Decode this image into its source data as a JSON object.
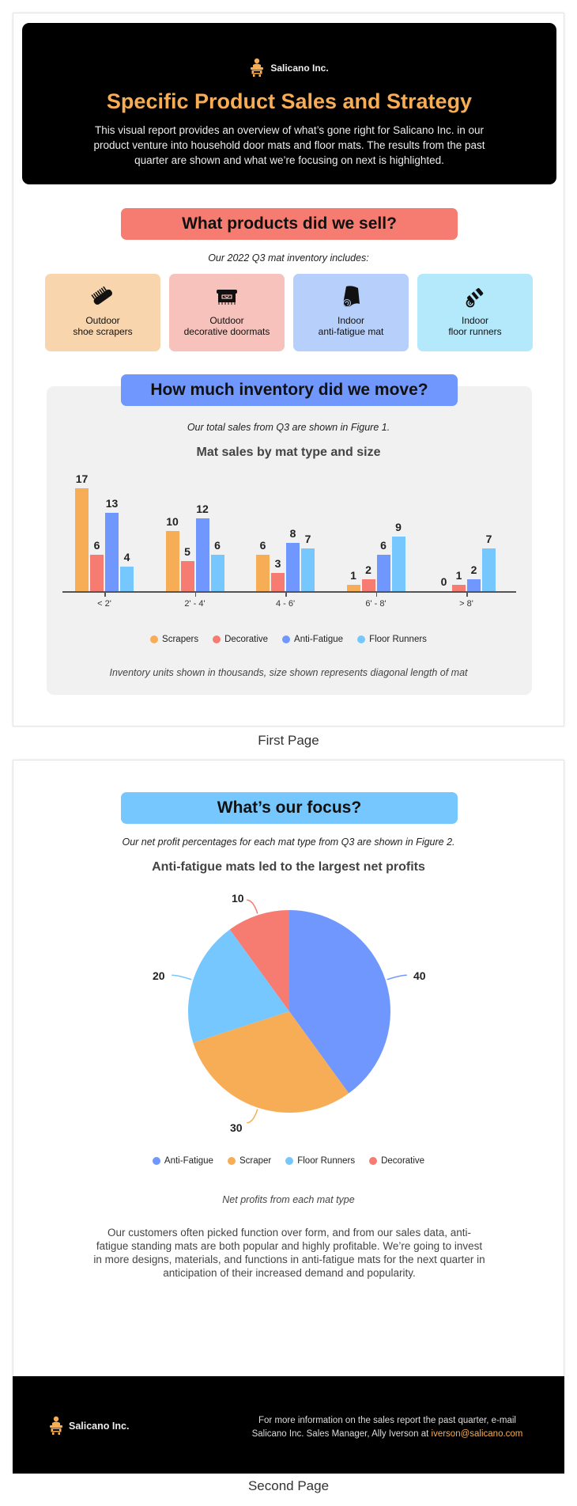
{
  "header": {
    "company": "Salicano Inc.",
    "title": "Specific Product Sales and Strategy",
    "description": "This visual report provides an overview of what’s gone right for Salicano Inc. in our product venture into household door mats and floor mats. The results from the past quarter are shown and what we’re focusing on next is highlighted."
  },
  "products_section": {
    "heading": "What products did we sell?",
    "subtitle": "Our 2022 Q3 mat inventory includes:",
    "cards": [
      {
        "line1": "Outdoor",
        "line2": "shoe scrapers",
        "icon": "brush-icon",
        "color": "#f8d5ad"
      },
      {
        "line1": "Outdoor",
        "line2": "decorative doormats",
        "icon": "doormat-icon",
        "color": "#f7c2bb"
      },
      {
        "line1": "Indoor",
        "line2": "anti-fatigue mat",
        "icon": "rolled-mat-icon",
        "color": "#b7cffb"
      },
      {
        "line1": "Indoor",
        "line2": "floor runners",
        "icon": "rolled-runner-icon",
        "color": "#b4e9fb"
      }
    ]
  },
  "inventory_section": {
    "heading": "How much inventory did we move?",
    "subtitle": "Our total sales from Q3 are shown in Figure 1.",
    "note": "Inventory units shown in thousands, size shown represents diagonal length of mat"
  },
  "focus_section": {
    "heading": "What’s our focus?",
    "subtitle": "Our net profit percentages for each mat type from Q3 are shown in Figure 2.",
    "pie_caption": "Net profits from each mat type",
    "body": "Our customers often picked function over form, and from our sales data, anti-fatigue standing mats are both popular and highly profitable. We’re going to invest in more designs, materials, and functions in anti-fatigue mats for the next quarter in anticipation of their increased demand and popularity."
  },
  "footer": {
    "company": "Salicano Inc.",
    "contact_text": "For more information on the sales report the past quarter, e-mail Salicano Inc. Sales Manager, Ally Iverson at",
    "email": "iverson@salicano.com"
  },
  "captions": {
    "first": "First Page",
    "second": "Second Page"
  },
  "colors": {
    "scrapers": "#f6ad55",
    "decorative": "#f67b70",
    "anti_fatigue": "#7097fd",
    "floor_runners": "#76c7fd",
    "accent": "#f6ad55"
  },
  "chart_data": [
    {
      "type": "bar",
      "title": "Mat sales by mat type and size",
      "categories": [
        "< 2'",
        "2' - 4'",
        "4 - 6'",
        "6' - 8'",
        "> 8'"
      ],
      "series": [
        {
          "name": "Scrapers",
          "color": "#f6ad55",
          "values": [
            17,
            10,
            6,
            1,
            0
          ]
        },
        {
          "name": "Decorative",
          "color": "#f67b70",
          "values": [
            6,
            5,
            3,
            2,
            1
          ]
        },
        {
          "name": "Anti-Fatigue",
          "color": "#7097fd",
          "values": [
            13,
            12,
            8,
            6,
            2
          ]
        },
        {
          "name": "Floor Runners",
          "color": "#76c7fd",
          "values": [
            4,
            6,
            7,
            9,
            7
          ]
        }
      ],
      "xlabel": "",
      "ylabel": "",
      "ylim": [
        0,
        18
      ],
      "grid": false,
      "legend_position": "bottom",
      "annotation": "Inventory units shown in thousands, size shown represents diagonal length of mat"
    },
    {
      "type": "pie",
      "title": "Anti-fatigue mats led to the largest net profits",
      "categories": [
        "Anti-Fatigue",
        "Scraper",
        "Floor Runners",
        "Decorative"
      ],
      "values": [
        40,
        30,
        20,
        10
      ],
      "colors": [
        "#7097fd",
        "#f6ad55",
        "#76c7fd",
        "#f67b70"
      ],
      "legend_position": "bottom",
      "annotation": "Net profits from each mat type"
    }
  ]
}
